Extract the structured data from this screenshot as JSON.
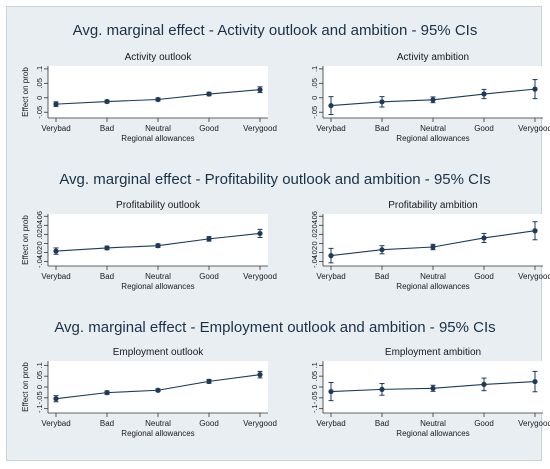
{
  "figure": {
    "frame_color": "#e9eef3",
    "line_color": "#1c3a5b",
    "xlabel": "Regional allowances",
    "categories": [
      "Verybad",
      "Bad",
      "Neutral",
      "Good",
      "Verygood"
    ]
  },
  "rows": [
    {
      "title": "Avg. marginal effect - Activity outlook and ambition - 95% CIs",
      "ylabel": "Effect on prob",
      "panels": [
        {
          "subtitle": "Activity outlook",
          "yticks": [
            "-.05",
            "0",
            ".05",
            ".1"
          ]
        },
        {
          "subtitle": "Activity ambition",
          "yticks": [
            "-.05",
            "0",
            ".05",
            ".1"
          ]
        }
      ]
    },
    {
      "title": "Avg. marginal effect - Profitability outlook and ambition - 95% CIs",
      "ylabel": "Effect on prob",
      "panels": [
        {
          "subtitle": "Profitability outlook",
          "yticks": [
            "-.04",
            "-.02",
            "0",
            ".02",
            ".04",
            ".06"
          ]
        },
        {
          "subtitle": "Profitability ambition",
          "yticks": [
            "-.04",
            "-.02",
            "0",
            ".02",
            ".04",
            ".06"
          ]
        }
      ]
    },
    {
      "title": "Avg. marginal effect - Employment outlook and ambition - 95% CIs",
      "ylabel": "Effect on prob",
      "panels": [
        {
          "subtitle": "Employment outlook",
          "yticks": [
            "-.1",
            "-.05",
            "0",
            ".05",
            ".1"
          ]
        },
        {
          "subtitle": "Employment ambition",
          "yticks": [
            "-.1",
            "-.05",
            "0",
            ".05",
            ".1"
          ]
        }
      ]
    }
  ],
  "chart_data": [
    {
      "type": "line",
      "title": "Activity outlook",
      "xlabel": "Regional allowances",
      "ylabel": "Effect on prob",
      "categories": [
        "Verybad",
        "Bad",
        "Neutral",
        "Good",
        "Verygood"
      ],
      "ylim": [
        -0.07,
        0.11
      ],
      "yticks": [
        -0.05,
        0,
        0.05,
        0.1
      ],
      "ytick_labels": [
        "-.05",
        "0",
        ".05",
        ".1"
      ],
      "series": [
        {
          "values": [
            -0.022,
            -0.013,
            -0.006,
            0.013,
            0.028
          ],
          "ci_low": [
            -0.03,
            -0.018,
            -0.011,
            0.007,
            0.018
          ],
          "ci_high": [
            -0.014,
            -0.008,
            -0.001,
            0.019,
            0.038
          ]
        }
      ]
    },
    {
      "type": "line",
      "title": "Activity ambition",
      "xlabel": "Regional allowances",
      "ylabel": "",
      "categories": [
        "Verybad",
        "Bad",
        "Neutral",
        "Good",
        "Verygood"
      ],
      "ylim": [
        -0.07,
        0.11
      ],
      "yticks": [
        -0.05,
        0,
        0.05,
        0.1
      ],
      "ytick_labels": [
        "-.05",
        "0",
        ".05",
        ".1"
      ],
      "series": [
        {
          "values": [
            -0.027,
            -0.014,
            -0.007,
            0.013,
            0.03
          ],
          "ci_low": [
            -0.058,
            -0.032,
            -0.017,
            -0.003,
            -0.003
          ],
          "ci_high": [
            0.004,
            0.004,
            0.003,
            0.029,
            0.063
          ]
        }
      ]
    },
    {
      "type": "line",
      "title": "Profitability outlook",
      "xlabel": "Regional allowances",
      "ylabel": "Effect on prob",
      "categories": [
        "Verybad",
        "Bad",
        "Neutral",
        "Good",
        "Verygood"
      ],
      "ylim": [
        -0.05,
        0.065
      ],
      "yticks": [
        -0.04,
        -0.02,
        0,
        0.02,
        0.04,
        0.06
      ],
      "ytick_labels": [
        "-.04",
        "-.02",
        "0",
        ".02",
        ".04",
        ".06"
      ],
      "series": [
        {
          "values": [
            -0.017,
            -0.01,
            -0.005,
            0.01,
            0.022
          ],
          "ci_low": [
            -0.024,
            -0.014,
            -0.009,
            0.005,
            0.013
          ],
          "ci_high": [
            -0.01,
            -0.006,
            -0.001,
            0.015,
            0.031
          ]
        }
      ]
    },
    {
      "type": "line",
      "title": "Profitability ambition",
      "xlabel": "Regional allowances",
      "ylabel": "",
      "categories": [
        "Verybad",
        "Bad",
        "Neutral",
        "Good",
        "Verygood"
      ],
      "ylim": [
        -0.05,
        0.065
      ],
      "yticks": [
        -0.04,
        -0.02,
        0,
        0.02,
        0.04,
        0.06
      ],
      "ytick_labels": [
        "-.04",
        "-.02",
        "0",
        ".02",
        ".04",
        ".06"
      ],
      "series": [
        {
          "values": [
            -0.027,
            -0.014,
            -0.008,
            0.012,
            0.028
          ],
          "ci_low": [
            -0.043,
            -0.023,
            -0.014,
            0.002,
            0.008
          ],
          "ci_high": [
            -0.011,
            -0.005,
            -0.002,
            0.022,
            0.048
          ]
        }
      ]
    },
    {
      "type": "line",
      "title": "Employment outlook",
      "xlabel": "Regional allowances",
      "ylabel": "Effect on prob",
      "categories": [
        "Verybad",
        "Bad",
        "Neutral",
        "Good",
        "Verygood"
      ],
      "ylim": [
        -0.12,
        0.12
      ],
      "yticks": [
        -0.1,
        -0.05,
        0,
        0.05,
        0.1
      ],
      "ytick_labels": [
        "-.1",
        "-.05",
        "0",
        ".05",
        ".1"
      ],
      "series": [
        {
          "values": [
            -0.054,
            -0.026,
            -0.015,
            0.026,
            0.057
          ],
          "ci_low": [
            -0.068,
            -0.034,
            -0.021,
            0.017,
            0.042
          ],
          "ci_high": [
            -0.04,
            -0.018,
            -0.009,
            0.035,
            0.072
          ]
        }
      ]
    },
    {
      "type": "line",
      "title": "Employment ambition",
      "xlabel": "Regional allowances",
      "ylabel": "",
      "categories": [
        "Verybad",
        "Bad",
        "Neutral",
        "Good",
        "Verygood"
      ],
      "ylim": [
        -0.12,
        0.12
      ],
      "yticks": [
        -0.1,
        -0.05,
        0,
        0.05,
        0.1
      ],
      "ytick_labels": [
        "-.1",
        "-.05",
        "0",
        ".05",
        ".1"
      ],
      "series": [
        {
          "values": [
            -0.021,
            -0.011,
            -0.006,
            0.012,
            0.025
          ],
          "ci_low": [
            -0.063,
            -0.038,
            -0.02,
            -0.017,
            -0.022
          ],
          "ci_high": [
            0.021,
            0.016,
            0.008,
            0.041,
            0.072
          ]
        }
      ]
    }
  ]
}
